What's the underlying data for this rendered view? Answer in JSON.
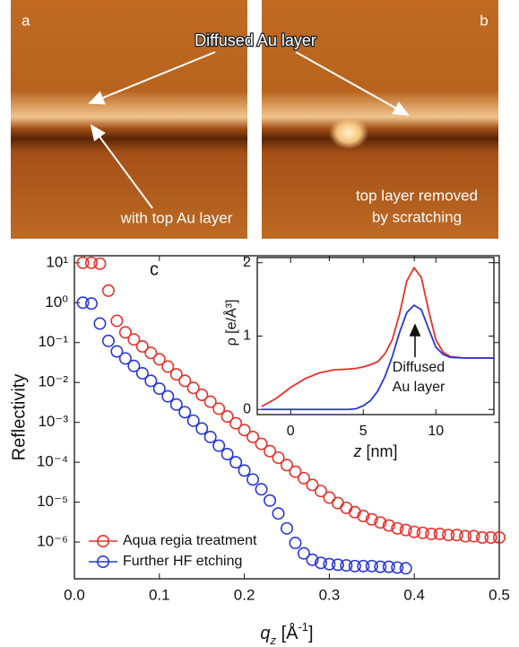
{
  "image_panels": [
    {
      "label": "a",
      "caption": [
        "with top Au layer"
      ]
    },
    {
      "label": "b",
      "caption": [
        "top layer removed",
        "by scratching"
      ]
    }
  ],
  "image_annotation": "Diffused Au layer",
  "chart_data": [
    {
      "type": "scatter",
      "panel_label": "c",
      "y_label": "Reflectivity",
      "x_label": [
        "q",
        "z",
        " [Å",
        "-1",
        "]"
      ],
      "yscale": "log",
      "xlim": [
        0,
        0.5
      ],
      "ylim": [
        1.2e-07,
        15
      ],
      "xticks": [
        {
          "value": 0,
          "label": "0.0"
        },
        0.1,
        0.2,
        0.3,
        0.4,
        0.5
      ],
      "yticks": [
        {
          "value": 10,
          "label": "10¹"
        },
        {
          "value": 1,
          "label": "10⁰"
        },
        {
          "value": 0.1,
          "label": "10⁻¹"
        },
        {
          "value": 0.01,
          "label": "10⁻²"
        },
        {
          "value": 0.001,
          "label": "10⁻³"
        },
        {
          "value": 0.0001,
          "label": "10⁻⁴"
        },
        {
          "value": 1e-05,
          "label": "10⁻⁵"
        },
        {
          "value": 1e-06,
          "label": "10⁻⁶"
        }
      ],
      "legend": "lower left",
      "series": [
        {
          "name": "Aqua regia treatment",
          "color": "#e8302a",
          "x": [
            0.01,
            0.02,
            0.03,
            0.04,
            0.05,
            0.06,
            0.07,
            0.08,
            0.09,
            0.1,
            0.11,
            0.12,
            0.13,
            0.14,
            0.15,
            0.16,
            0.17,
            0.18,
            0.19,
            0.2,
            0.21,
            0.22,
            0.23,
            0.24,
            0.25,
            0.26,
            0.27,
            0.28,
            0.29,
            0.3,
            0.31,
            0.32,
            0.33,
            0.34,
            0.35,
            0.36,
            0.37,
            0.38,
            0.39,
            0.4,
            0.41,
            0.42,
            0.43,
            0.44,
            0.45,
            0.46,
            0.47,
            0.48,
            0.49,
            0.5
          ],
          "values": [
            10,
            10,
            9.5,
            2,
            0.35,
            0.18,
            0.12,
            0.08,
            0.055,
            0.038,
            0.025,
            0.016,
            0.011,
            0.0073,
            0.0049,
            0.0033,
            0.0022,
            0.0014,
            0.00095,
            0.00064,
            0.00043,
            0.00029,
            0.00019,
            0.00013,
            8.5e-05,
            5.8e-05,
            4e-05,
            2.7e-05,
            1.9e-05,
            1.3e-05,
            9.5e-06,
            7.2e-06,
            5.6e-06,
            4.5e-06,
            3.7e-06,
            3.1e-06,
            2.6e-06,
            2.2e-06,
            2e-06,
            1.8e-06,
            1.7e-06,
            1.6e-06,
            1.6e-06,
            1.5e-06,
            1.5e-06,
            1.4e-06,
            1.4e-06,
            1.3e-06,
            1.3e-06,
            1.3e-06
          ]
        },
        {
          "name": "Further HF etching",
          "color": "#2a36d8",
          "x": [
            0.01,
            0.02,
            0.03,
            0.04,
            0.05,
            0.06,
            0.07,
            0.08,
            0.09,
            0.1,
            0.11,
            0.12,
            0.13,
            0.14,
            0.15,
            0.16,
            0.17,
            0.18,
            0.19,
            0.2,
            0.21,
            0.22,
            0.23,
            0.24,
            0.25,
            0.26,
            0.27,
            0.28,
            0.29,
            0.3,
            0.31,
            0.32,
            0.33,
            0.34,
            0.35,
            0.36,
            0.37,
            0.38,
            0.39
          ],
          "values": [
            1,
            0.95,
            0.3,
            0.11,
            0.06,
            0.04,
            0.026,
            0.017,
            0.011,
            0.007,
            0.0045,
            0.0028,
            0.0018,
            0.0011,
            0.0007,
            0.00043,
            0.00026,
            0.00016,
            0.0001,
            6.2e-05,
            3.7e-05,
            2.1e-05,
            1.1e-05,
            5.2e-06,
            2.2e-06,
            9.5e-07,
            5.2e-07,
            3.6e-07,
            3e-07,
            2.8e-07,
            2.7e-07,
            2.6e-07,
            2.5e-07,
            2.5e-07,
            2.5e-07,
            2.4e-07,
            2.4e-07,
            2.3e-07,
            2.2e-07
          ]
        }
      ]
    },
    {
      "type": "line",
      "y_label": "ρ [e/Å³]",
      "x_label": [
        "z",
        " [nm]"
      ],
      "annotation": [
        "Diffused",
        "Au layer"
      ],
      "xlim": [
        -2.3,
        14
      ],
      "ylim": [
        -0.07,
        2.07
      ],
      "xticks": [
        0,
        5,
        10
      ],
      "yticks": [
        0,
        1,
        2
      ],
      "x": [
        -2,
        -1,
        0,
        1,
        2,
        3,
        4,
        4.5,
        5,
        5.5,
        6,
        6.5,
        7,
        7.5,
        8,
        8.5,
        9,
        9.5,
        10,
        10.5,
        11,
        12,
        13,
        14
      ],
      "series": [
        {
          "color": "#e8302a",
          "values": [
            0.04,
            0.15,
            0.3,
            0.42,
            0.5,
            0.54,
            0.55,
            0.56,
            0.58,
            0.61,
            0.65,
            0.76,
            0.95,
            1.3,
            1.75,
            1.93,
            1.8,
            1.35,
            0.95,
            0.78,
            0.72,
            0.7,
            0.7,
            0.7
          ]
        },
        {
          "color": "#2a36d8",
          "values": [
            0,
            0,
            0,
            0,
            0,
            0,
            0,
            0.01,
            0.05,
            0.12,
            0.25,
            0.45,
            0.72,
            1.05,
            1.32,
            1.42,
            1.36,
            1.1,
            0.85,
            0.75,
            0.71,
            0.7,
            0.7,
            0.7
          ]
        }
      ]
    }
  ]
}
